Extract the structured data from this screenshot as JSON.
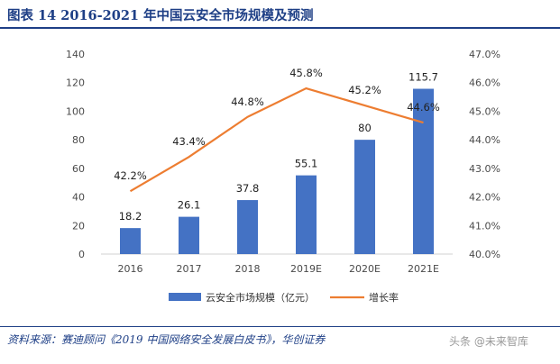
{
  "header": {
    "title": "图表 14   2016-2021 年中国云安全市场规模及预测"
  },
  "chart_data": {
    "type": "bar",
    "categories": [
      "2016",
      "2017",
      "2018",
      "2019E",
      "2020E",
      "2021E"
    ],
    "series": [
      {
        "name": "云安全市场规模（亿元）",
        "type": "bar",
        "axis": "left",
        "color": "#4472c4",
        "values": [
          18.2,
          26.1,
          37.8,
          55.1,
          80,
          115.7
        ],
        "labels": [
          "18.2",
          "26.1",
          "37.8",
          "55.1",
          "80",
          "115.7"
        ]
      },
      {
        "name": "增长率",
        "type": "line",
        "axis": "right",
        "color": "#ed7d31",
        "values": [
          42.2,
          43.4,
          44.8,
          45.8,
          45.2,
          44.6
        ],
        "labels": [
          "42.2%",
          "43.4%",
          "44.8%",
          "45.8%",
          "45.2%",
          "44.6%"
        ]
      }
    ],
    "ylim_left": [
      0,
      140
    ],
    "yticks_left": [
      "0",
      "20",
      "40",
      "60",
      "80",
      "100",
      "120",
      "140"
    ],
    "ylim_right": [
      40.0,
      47.0
    ],
    "yticks_right": [
      "40.0%",
      "41.0%",
      "42.0%",
      "43.0%",
      "44.0%",
      "45.0%",
      "46.0%",
      "47.0%"
    ],
    "legend_position": "bottom",
    "grid": false
  },
  "footer": {
    "source": "资料来源：赛迪顾问《2019 中国网络安全发展白皮书》，华创证券",
    "watermark": "头条 @未来智库"
  }
}
